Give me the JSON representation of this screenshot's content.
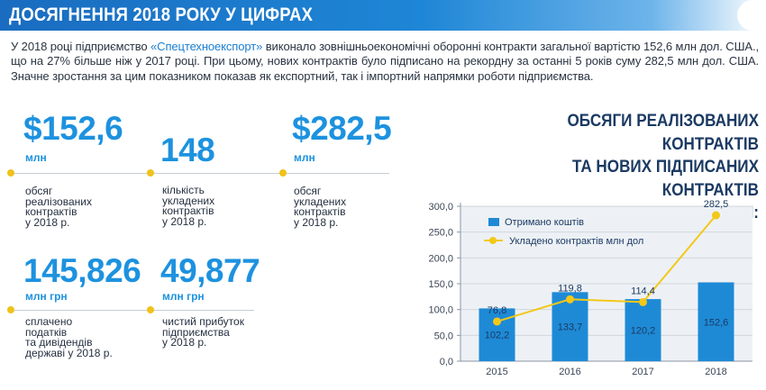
{
  "header": {
    "title": "ДОСЯГНЕННЯ 2018 РОКУ У ЦИФРАХ"
  },
  "intro": {
    "part1": "У 2018 році підприємство ",
    "company": "«Спецтехноекспорт»",
    "part2": " виконало зовнішньоекономічні оборонні контракти загальної вартістю 152,6 млн дол. США., що на 27% більше ніж у 2017 році. При цьому, нових контрактів було підписано на рекордну за останні 5 років суму 282,5 млн дол. США. Значне зростання за цим показником показав як експортний, так і імпортний напрямки роботи підприємства."
  },
  "stats": [
    {
      "value": "$152,6",
      "unit": "млн",
      "description": "обсяг\nреалізованих\nконтрактів\nу 2018 р."
    },
    {
      "value": "148",
      "unit": "",
      "description": "кількість\nукладених\nконтрактів\nу 2018 р."
    },
    {
      "value": "$282,5",
      "unit": "млн",
      "description": "обсяг\nукладених\nконтрактів\nу 2018 р."
    },
    {
      "value": "145,826",
      "unit": "млн грн",
      "description": "сплачено\nподатків\nта дивідендів\nдержаві у 2018 р."
    },
    {
      "value": "49,877",
      "unit": "млн грн",
      "description": "чистий прибуток\nпідприємства\nу 2018 р."
    }
  ],
  "chart_title": "ОБСЯГИ РЕАЛІЗОВАНИХ КОНТРАКТІВ\nТА НОВИХ ПІДПИСАНИХ КОНТРАКТІВ\nЗА РОКАМИ:",
  "colors": {
    "bar": "#1e8ad6",
    "line": "#f3c819",
    "accent": "#1d92df",
    "header": "#1a6cc0"
  },
  "chart_data": {
    "type": "bar",
    "categories": [
      "2015",
      "2016",
      "2017",
      "2018"
    ],
    "series": [
      {
        "name": "Отримано коштів",
        "type": "bar",
        "values": [
          102.2,
          133.7,
          120.2,
          152.6
        ],
        "labels": [
          "102,2",
          "133,7",
          "120,2",
          "152,6"
        ]
      },
      {
        "name": "Укладено контрактів млн дол",
        "type": "line",
        "values": [
          76.8,
          119.8,
          114.4,
          282.5
        ],
        "labels": [
          "76,8",
          "119,8",
          "114,4",
          "282,5"
        ]
      }
    ],
    "ylim": [
      0,
      300
    ],
    "yticks": [
      "0,0",
      "50,0",
      "100,0",
      "150,0",
      "200,0",
      "250,0",
      "300,0"
    ],
    "grid": true,
    "legend": "top-left"
  }
}
